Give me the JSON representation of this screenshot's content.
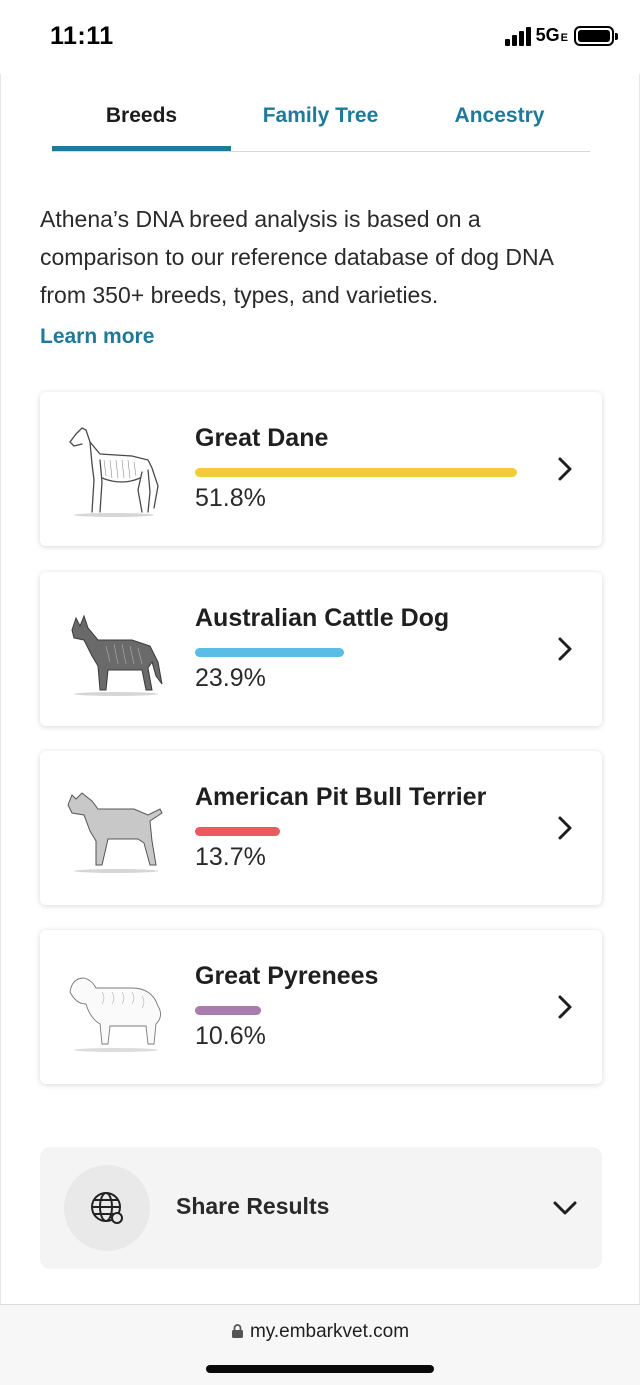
{
  "status_bar": {
    "time": "11:11",
    "network": "5G",
    "network_sub": "E"
  },
  "tabs": [
    {
      "label": "Breeds",
      "active": true
    },
    {
      "label": "Family Tree",
      "active": false
    },
    {
      "label": "Ancestry",
      "active": false
    }
  ],
  "intro": {
    "text": "Athena’s DNA breed analysis is based on a comparison to our reference database of dog DNA from 350+ breeds, types, and varieties.",
    "learn_more": "Learn more"
  },
  "breeds": [
    {
      "name": "Great Dane",
      "percent_label": "51.8%",
      "percent": 51.8,
      "color": "#f2cb38"
    },
    {
      "name": "Australian Cattle Dog",
      "percent_label": "23.9%",
      "percent": 23.9,
      "color": "#5bbde6"
    },
    {
      "name": "American Pit Bull Terrier",
      "percent_label": "13.7%",
      "percent": 13.7,
      "color": "#ec5a5f"
    },
    {
      "name": "Great Pyrenees",
      "percent_label": "10.6%",
      "percent": 10.6,
      "color": "#a97cae"
    }
  ],
  "share": {
    "label": "Share Results"
  },
  "browser": {
    "url": "my.embarkvet.com"
  },
  "colors": {
    "accent": "#1f7a99"
  }
}
